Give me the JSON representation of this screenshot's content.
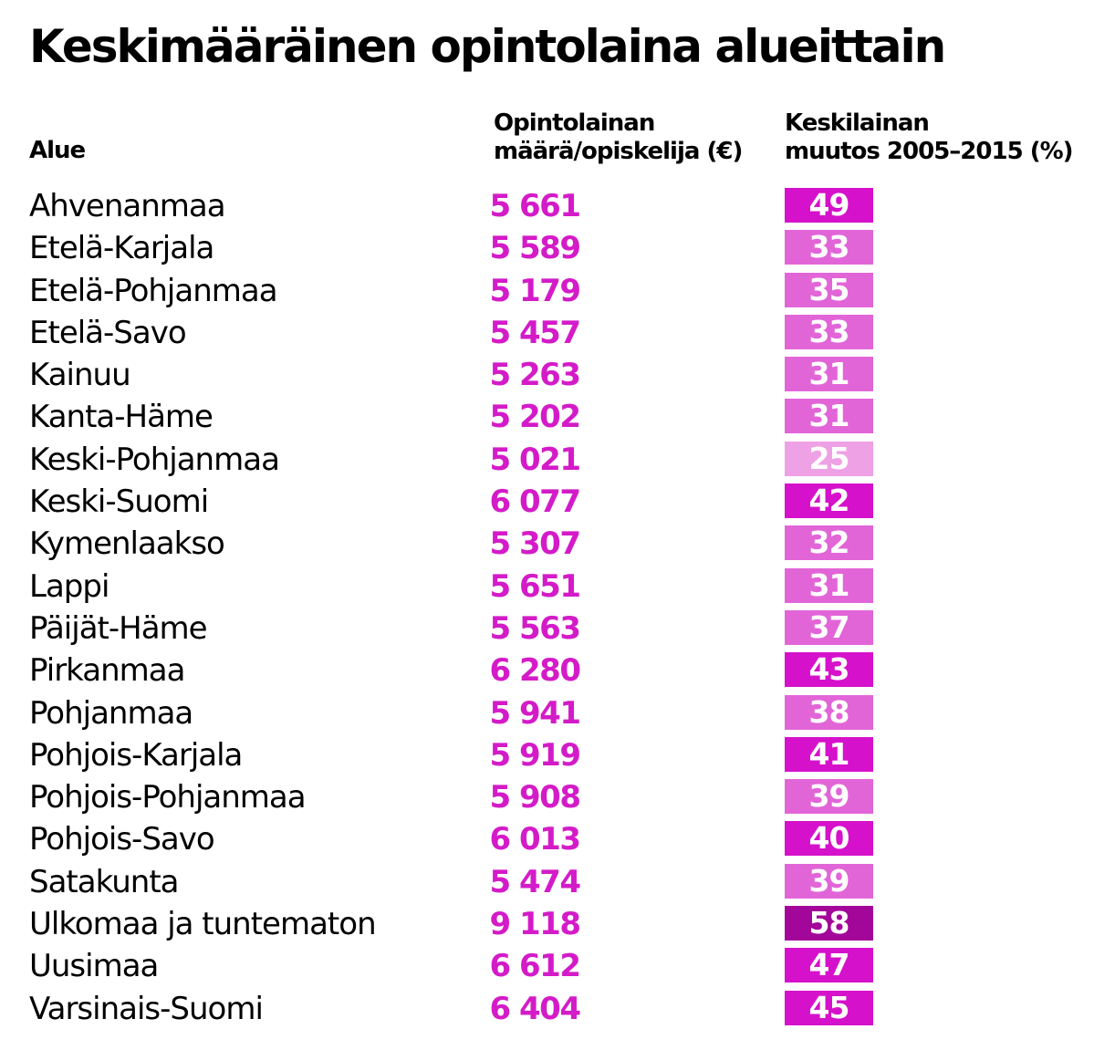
{
  "title": "Keskimääräinen opintolaina alueittain",
  "columns": {
    "region": "Alue",
    "amount_line1": "Opintolainan",
    "amount_line2": "määrä/opiskelija (€)",
    "change_line1": "Keskilainan",
    "change_line2": "muutos 2005–2015 (%)"
  },
  "colors": {
    "amount_text": "#d41bc8",
    "box_light": "#efa1e6",
    "box_mid": "#e265d8",
    "box_strong": "#d611cb",
    "box_darkest": "#a3079a"
  },
  "chart_data": {
    "type": "table",
    "title": "Keskimääräinen opintolaina alueittain",
    "columns": [
      "Alue",
      "Opintolainan määrä/opiskelija (€)",
      "Keskilainan muutos 2005–2015 (%)"
    ],
    "rows": [
      {
        "region": "Ahvenanmaa",
        "amount": "5 661",
        "change": 49
      },
      {
        "region": "Etelä-Karjala",
        "amount": "5 589",
        "change": 33
      },
      {
        "region": "Etelä-Pohjanmaa",
        "amount": "5 179",
        "change": 35
      },
      {
        "region": "Etelä-Savo",
        "amount": "5 457",
        "change": 33
      },
      {
        "region": "Kainuu",
        "amount": "5 263",
        "change": 31
      },
      {
        "region": "Kanta-Häme",
        "amount": "5 202",
        "change": 31
      },
      {
        "region": "Keski-Pohjanmaa",
        "amount": "5 021",
        "change": 25
      },
      {
        "region": "Keski-Suomi",
        "amount": "6 077",
        "change": 42
      },
      {
        "region": "Kymenlaakso",
        "amount": "5 307",
        "change": 32
      },
      {
        "region": "Lappi",
        "amount": "5 651",
        "change": 31
      },
      {
        "region": "Päijät-Häme",
        "amount": "5 563",
        "change": 37
      },
      {
        "region": "Pirkanmaa",
        "amount": "6 280",
        "change": 43
      },
      {
        "region": "Pohjanmaa",
        "amount": "5 941",
        "change": 38
      },
      {
        "region": "Pohjois-Karjala",
        "amount": "5 919",
        "change": 41
      },
      {
        "region": "Pohjois-Pohjanmaa",
        "amount": "5 908",
        "change": 39
      },
      {
        "region": "Pohjois-Savo",
        "amount": "6 013",
        "change": 40
      },
      {
        "region": "Satakunta",
        "amount": "5 474",
        "change": 39
      },
      {
        "region": "Ulkomaa ja tuntematon",
        "amount": "9 118",
        "change": 58
      },
      {
        "region": "Uusimaa",
        "amount": "6 612",
        "change": 47
      },
      {
        "region": "Varsinais-Suomi",
        "amount": "6 404",
        "change": 45
      }
    ]
  }
}
